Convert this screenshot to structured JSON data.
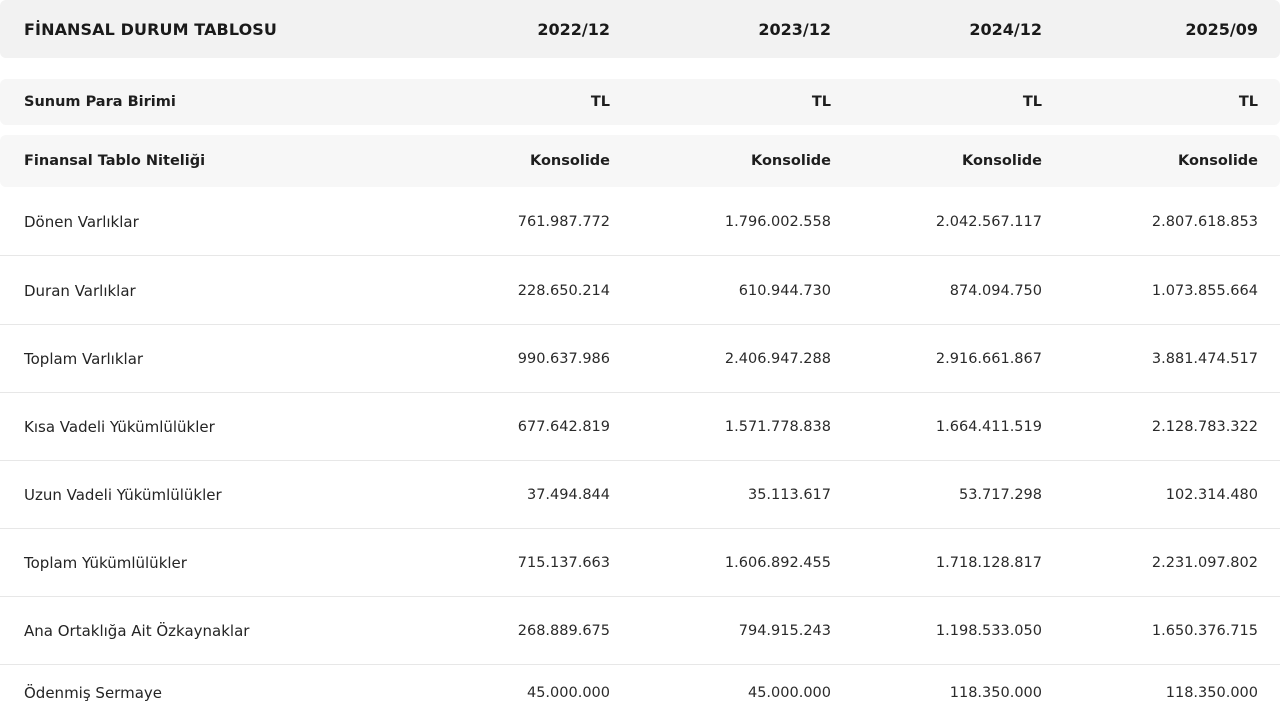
{
  "header": {
    "title": "FİNANSAL DURUM TABLOSU",
    "periods": [
      "2022/12",
      "2023/12",
      "2024/12",
      "2025/09"
    ]
  },
  "meta_rows": [
    {
      "label": "Sunum Para Birimi",
      "values": [
        "TL",
        "TL",
        "TL",
        "TL"
      ]
    },
    {
      "label": "Finansal Tablo Niteliği",
      "values": [
        "Konsolide",
        "Konsolide",
        "Konsolide",
        "Konsolide"
      ]
    }
  ],
  "rows": [
    {
      "label": "Dönen Varlıklar",
      "values": [
        "761.987.772",
        "1.796.002.558",
        "2.042.567.117",
        "2.807.618.853"
      ]
    },
    {
      "label": "Duran Varlıklar",
      "values": [
        "228.650.214",
        "610.944.730",
        "874.094.750",
        "1.073.855.664"
      ]
    },
    {
      "label": "Toplam Varlıklar",
      "values": [
        "990.637.986",
        "2.406.947.288",
        "2.916.661.867",
        "3.881.474.517"
      ]
    },
    {
      "label": "Kısa Vadeli Yükümlülükler",
      "values": [
        "677.642.819",
        "1.571.778.838",
        "1.664.411.519",
        "2.128.783.322"
      ]
    },
    {
      "label": "Uzun Vadeli Yükümlülükler",
      "values": [
        "37.494.844",
        "35.113.617",
        "53.717.298",
        "102.314.480"
      ]
    },
    {
      "label": "Toplam Yükümlülükler",
      "values": [
        "715.137.663",
        "1.606.892.455",
        "1.718.128.817",
        "2.231.097.802"
      ]
    },
    {
      "label": "Ana Ortaklığa Ait Özkaynaklar",
      "values": [
        "268.889.675",
        "794.915.243",
        "1.198.533.050",
        "1.650.376.715"
      ]
    },
    {
      "label": "Ödenmiş Sermaye",
      "values": [
        "45.000.000",
        "45.000.000",
        "118.350.000",
        "118.350.000"
      ]
    }
  ]
}
